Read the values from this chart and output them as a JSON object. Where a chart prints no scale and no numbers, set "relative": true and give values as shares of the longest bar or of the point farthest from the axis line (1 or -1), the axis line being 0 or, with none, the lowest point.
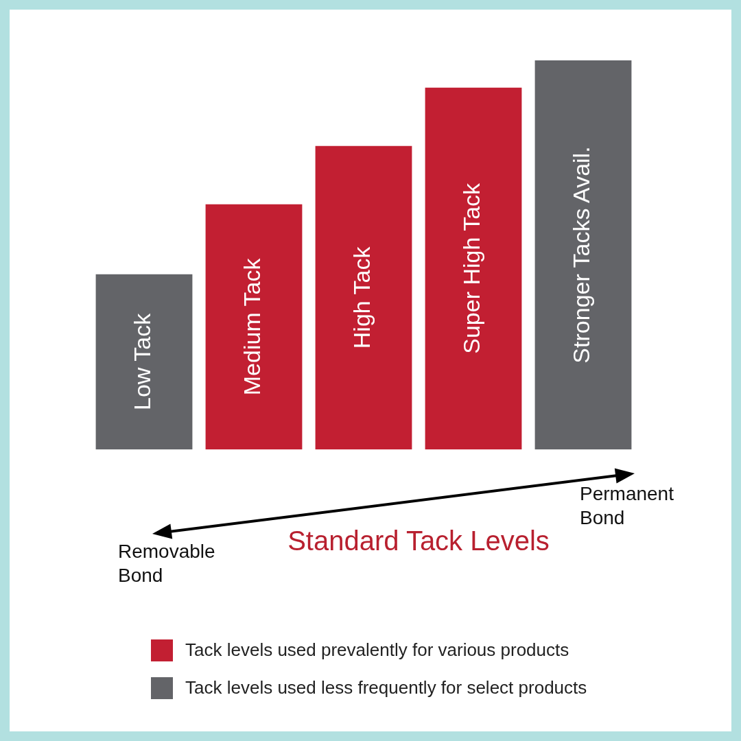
{
  "chart_data": {
    "type": "bar",
    "xlabel": "Standard Tack Levels",
    "categories": [
      "Low Tack",
      "Medium Tack",
      "High Tack",
      "Super High Tack",
      "Stronger Tacks Avail."
    ],
    "relative": true,
    "series": [
      {
        "name": "Tack levels used prevalently for various products",
        "color": "#c21f32",
        "values": [
          null,
          0.63,
          0.78,
          0.93,
          null
        ]
      },
      {
        "name": "Tack levels used less frequently for select products",
        "color": "#636468",
        "values": [
          0.45,
          null,
          null,
          null,
          1
        ]
      }
    ],
    "annotations": [
      "Removable Bond",
      "Permanent Bond"
    ],
    "legend": "bottom"
  }
}
